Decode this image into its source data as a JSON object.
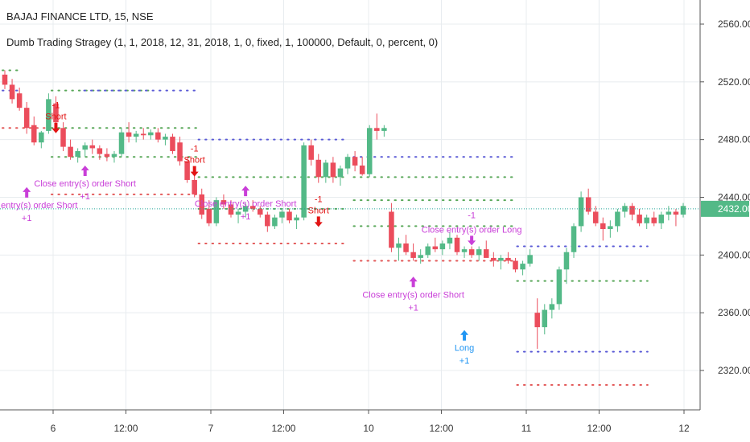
{
  "header": {
    "title": "BAJAJ FINANCE LTD, 15, NSE",
    "study": "Dumb Trading Stragey (1, 1, 2018, 12, 31, 2018, 1, 0, fixed, 1, 100000, Default, 0, percent, 0)"
  },
  "colors": {
    "up": "#53b987",
    "down": "#eb4d5c",
    "short": "#e21414",
    "long": "#2196f3",
    "close": "#c93fd8",
    "price_line": "#26a69a",
    "price_tag": "#53b987",
    "dot_green": "#5aa85a",
    "dot_red": "#e35a5a",
    "dot_blue": "#5b5bd6",
    "grid": "#e8ecef",
    "axis_text": "#333333"
  },
  "chart_data": {
    "type": "candlestick",
    "y_axis": {
      "ticks": [
        2320,
        2360,
        2400,
        2440,
        2480,
        2520,
        2560
      ],
      "tick_labels": [
        "2320.00",
        "2360.00",
        "2400.00",
        "2440.00",
        "2480.00",
        "2520.00",
        "2560.00"
      ],
      "range": [
        2300,
        2575
      ],
      "side": "right"
    },
    "x_axis": {
      "ticks": [
        "6",
        "12:00",
        "7",
        "12:00",
        "10",
        "12:00",
        "11",
        "12:00",
        "12"
      ],
      "tick_positions_in_bars": [
        4,
        10,
        17,
        23,
        30,
        36,
        43,
        49,
        56
      ],
      "bars_per_session": 25
    },
    "last_price": {
      "value": 2432,
      "label": "2432.00"
    },
    "grid": true,
    "candles": [
      [
        2525,
        2528,
        2515,
        2518
      ],
      [
        2518,
        2522,
        2505,
        2508
      ],
      [
        2512,
        2516,
        2500,
        2502
      ],
      [
        2502,
        2506,
        2484,
        2488
      ],
      [
        2490,
        2496,
        2476,
        2478
      ],
      [
        2478,
        2486,
        2474,
        2485
      ],
      [
        2486,
        2512,
        2484,
        2508
      ],
      [
        2505,
        2510,
        2490,
        2492
      ],
      [
        2488,
        2492,
        2472,
        2475
      ],
      [
        2475,
        2480,
        2466,
        2468
      ],
      [
        2468,
        2474,
        2464,
        2472
      ],
      [
        2473,
        2478,
        2468,
        2476
      ],
      [
        2476,
        2480,
        2470,
        2474
      ],
      [
        2474,
        2476,
        2466,
        2470
      ],
      [
        2470,
        2474,
        2465,
        2468
      ],
      [
        2468,
        2472,
        2464,
        2470
      ],
      [
        2470,
        2488,
        2468,
        2485
      ],
      [
        2485,
        2492,
        2478,
        2482
      ],
      [
        2482,
        2486,
        2478,
        2484
      ],
      [
        2484,
        2488,
        2480,
        2483
      ],
      [
        2483,
        2487,
        2480,
        2485
      ],
      [
        2485,
        2488,
        2478,
        2480
      ],
      [
        2480,
        2484,
        2476,
        2482
      ],
      [
        2482,
        2484,
        2470,
        2472
      ],
      [
        2478,
        2482,
        2462,
        2465
      ],
      [
        2465,
        2468,
        2450,
        2452
      ],
      [
        2452,
        2456,
        2440,
        2442
      ],
      [
        2442,
        2446,
        2425,
        2428
      ],
      [
        2432,
        2438,
        2420,
        2422
      ],
      [
        2422,
        2440,
        2420,
        2438
      ],
      [
        2438,
        2442,
        2432,
        2435
      ],
      [
        2435,
        2438,
        2426,
        2428
      ],
      [
        2428,
        2432,
        2422,
        2430
      ],
      [
        2430,
        2436,
        2426,
        2434
      ],
      [
        2434,
        2438,
        2430,
        2432
      ],
      [
        2432,
        2434,
        2426,
        2428
      ],
      [
        2428,
        2430,
        2416,
        2420
      ],
      [
        2420,
        2428,
        2418,
        2426
      ],
      [
        2426,
        2432,
        2422,
        2430
      ],
      [
        2430,
        2432,
        2422,
        2424
      ],
      [
        2424,
        2428,
        2418,
        2426
      ],
      [
        2426,
        2478,
        2424,
        2476
      ],
      [
        2476,
        2480,
        2462,
        2466
      ],
      [
        2466,
        2470,
        2450,
        2454
      ],
      [
        2454,
        2466,
        2450,
        2464
      ],
      [
        2464,
        2468,
        2450,
        2454
      ],
      [
        2454,
        2462,
        2448,
        2460
      ],
      [
        2460,
        2470,
        2456,
        2468
      ],
      [
        2468,
        2472,
        2458,
        2462
      ],
      [
        2462,
        2468,
        2455,
        2456
      ],
      [
        2456,
        2490,
        2454,
        2488
      ],
      [
        2488,
        2498,
        2480,
        2486
      ],
      [
        2486,
        2490,
        2482,
        2488
      ],
      [
        2430,
        2436,
        2402,
        2405
      ],
      [
        2405,
        2412,
        2396,
        2408
      ],
      [
        2408,
        2414,
        2400,
        2402
      ],
      [
        2402,
        2408,
        2396,
        2398
      ],
      [
        2398,
        2404,
        2394,
        2400
      ],
      [
        2400,
        2408,
        2398,
        2406
      ],
      [
        2406,
        2412,
        2402,
        2404
      ],
      [
        2404,
        2410,
        2400,
        2408
      ],
      [
        2408,
        2416,
        2404,
        2412
      ],
      [
        2412,
        2414,
        2400,
        2402
      ],
      [
        2402,
        2406,
        2398,
        2404
      ],
      [
        2404,
        2406,
        2398,
        2400
      ],
      [
        2400,
        2406,
        2396,
        2404
      ],
      [
        2404,
        2410,
        2400,
        2398
      ],
      [
        2398,
        2402,
        2392,
        2396
      ],
      [
        2396,
        2400,
        2390,
        2398
      ],
      [
        2398,
        2402,
        2394,
        2396
      ],
      [
        2396,
        2398,
        2388,
        2390
      ],
      [
        2390,
        2396,
        2386,
        2394
      ],
      [
        2394,
        2404,
        2392,
        2400
      ],
      [
        2360,
        2370,
        2335,
        2350
      ],
      [
        2350,
        2366,
        2345,
        2362
      ],
      [
        2362,
        2370,
        2356,
        2366
      ],
      [
        2366,
        2392,
        2362,
        2390
      ],
      [
        2390,
        2405,
        2380,
        2402
      ],
      [
        2402,
        2422,
        2398,
        2420
      ],
      [
        2420,
        2444,
        2416,
        2440
      ],
      [
        2440,
        2446,
        2428,
        2430
      ],
      [
        2430,
        2434,
        2420,
        2422
      ],
      [
        2422,
        2426,
        2410,
        2418
      ],
      [
        2418,
        2424,
        2412,
        2420
      ],
      [
        2420,
        2432,
        2416,
        2430
      ],
      [
        2430,
        2436,
        2426,
        2434
      ],
      [
        2434,
        2436,
        2424,
        2428
      ],
      [
        2428,
        2432,
        2420,
        2422
      ],
      [
        2422,
        2428,
        2418,
        2426
      ],
      [
        2426,
        2430,
        2420,
        2422
      ],
      [
        2422,
        2430,
        2418,
        2428
      ],
      [
        2428,
        2434,
        2424,
        2430
      ],
      [
        2430,
        2432,
        2420,
        2428
      ],
      [
        2428,
        2436,
        2426,
        2434
      ]
    ],
    "dotted_levels": [
      {
        "color": "dot_green",
        "price": 2528,
        "from": 0,
        "to": 2
      },
      {
        "color": "dot_blue",
        "price": 2514,
        "from": 0,
        "to": 2
      },
      {
        "color": "dot_green",
        "price": 2514,
        "from": 6,
        "to": 18
      },
      {
        "color": "dot_blue",
        "price": 2514,
        "from": 10,
        "to": 24
      },
      {
        "color": "dot_red",
        "price": 2488,
        "from": 0,
        "to": 6
      },
      {
        "color": "dot_green",
        "price": 2488,
        "from": 6,
        "to": 24
      },
      {
        "color": "dot_red",
        "price": 2442,
        "from": 6,
        "to": 24
      },
      {
        "color": "dot_green",
        "price": 2468,
        "from": 6,
        "to": 24
      },
      {
        "color": "dot_blue",
        "price": 2480,
        "from": 24,
        "to": 42
      },
      {
        "color": "dot_green",
        "price": 2454,
        "from": 24,
        "to": 42
      },
      {
        "color": "dot_green",
        "price": 2432,
        "from": 24,
        "to": 42
      },
      {
        "color": "dot_red",
        "price": 2408,
        "from": 24,
        "to": 42
      },
      {
        "color": "dot_blue",
        "price": 2468,
        "from": 43,
        "to": 63
      },
      {
        "color": "dot_green",
        "price": 2454,
        "from": 43,
        "to": 63
      },
      {
        "color": "dot_green",
        "price": 2438,
        "from": 43,
        "to": 63
      },
      {
        "color": "dot_green",
        "price": 2420,
        "from": 43,
        "to": 63
      },
      {
        "color": "dot_red",
        "price": 2396,
        "from": 43,
        "to": 63
      },
      {
        "color": "dot_green",
        "price": 2382,
        "from": 63,
        "to": 79
      },
      {
        "color": "dot_blue",
        "price": 2406,
        "from": 63,
        "to": 79
      },
      {
        "color": "dot_blue",
        "price": 2333,
        "from": 63,
        "to": 79
      },
      {
        "color": "dot_red",
        "price": 2310,
        "from": 63,
        "to": 79
      }
    ],
    "annotations": [
      {
        "kind": "short",
        "bar": 7,
        "price": 2485,
        "label": "Short",
        "qty": "-1"
      },
      {
        "kind": "close",
        "bar": 3,
        "price": 2447,
        "label": "Close entry(s) order Short",
        "qty": "+1"
      },
      {
        "kind": "close",
        "bar": 11,
        "price": 2462,
        "label": "Close entry(s) order Short",
        "qty": "+1"
      },
      {
        "kind": "short",
        "bar": 26,
        "price": 2455,
        "label": "Short",
        "qty": "-1"
      },
      {
        "kind": "close",
        "bar": 33,
        "price": 2448,
        "label": "Close entry(s) order Short",
        "qty": "+1"
      },
      {
        "kind": "short",
        "bar": 43,
        "price": 2420,
        "label": "Short",
        "qty": "-1"
      },
      {
        "kind": "close",
        "bar": 56,
        "price": 2385,
        "label": "Close entry(s) order Short",
        "qty": "+1"
      },
      {
        "kind": "long",
        "bar": 63,
        "price": 2348,
        "label": "Long",
        "qty": "+1"
      },
      {
        "kind": "close",
        "bar": 64,
        "price": 2410,
        "label": "Close entry(s) order Long",
        "qty": "-1"
      }
    ]
  }
}
